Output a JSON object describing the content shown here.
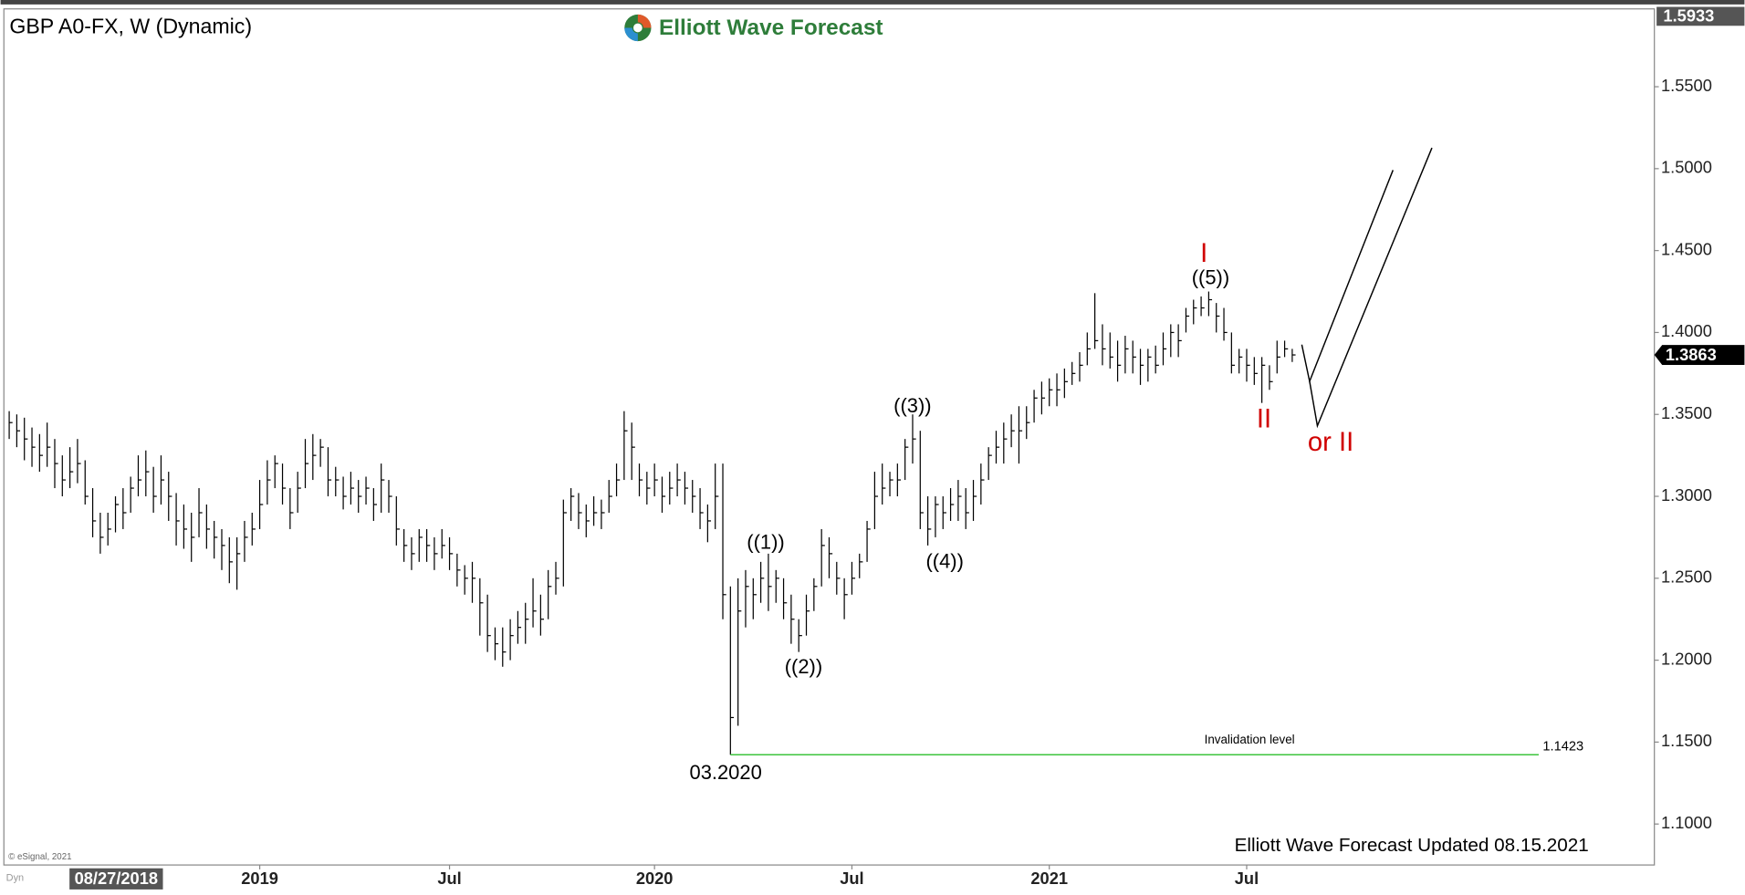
{
  "chart_data": {
    "type": "hlc",
    "title": "GBP A0-FX, W (Dynamic)",
    "brand": "Elliott Wave Forecast",
    "footer": "Elliott Wave Forecast Updated 08.15.2021",
    "copyright": "© eSignal, 2021",
    "mode_label": "Dyn",
    "date_marker": "08/27/2018",
    "color": "#000000",
    "xlim": [
      -0.7,
      216.7
    ],
    "xticks": [
      {
        "value": 33,
        "label": "2019"
      },
      {
        "value": 58,
        "label": "Jul"
      },
      {
        "value": 85,
        "label": "2020"
      },
      {
        "value": 111,
        "label": "Jul"
      },
      {
        "value": 137,
        "label": "2021"
      },
      {
        "value": 163,
        "label": "Jul"
      }
    ],
    "ylim": [
      1.075,
      1.5975
    ],
    "yticks": [
      {
        "value": 1.1,
        "label": "1.1000"
      },
      {
        "value": 1.15,
        "label": "1.1500"
      },
      {
        "value": 1.2,
        "label": "1.2000"
      },
      {
        "value": 1.25,
        "label": "1.2500"
      },
      {
        "value": 1.3,
        "label": "1.3000"
      },
      {
        "value": 1.35,
        "label": "1.3500"
      },
      {
        "value": 1.4,
        "label": "1.4000"
      },
      {
        "value": 1.45,
        "label": "1.4500"
      },
      {
        "value": 1.5,
        "label": "1.5000"
      },
      {
        "value": 1.55,
        "label": "1.5500"
      }
    ],
    "top_price": 1.5933,
    "last_price": 1.3863,
    "high": [
      1.352,
      1.35,
      1.348,
      1.342,
      1.338,
      1.345,
      1.335,
      1.325,
      1.33,
      1.335,
      1.322,
      1.305,
      1.29,
      1.29,
      1.3,
      1.305,
      1.312,
      1.325,
      1.328,
      1.318,
      1.325,
      1.315,
      1.302,
      1.295,
      1.29,
      1.305,
      1.295,
      1.285,
      1.28,
      1.275,
      1.275,
      1.285,
      1.29,
      1.31,
      1.322,
      1.325,
      1.32,
      1.305,
      1.315,
      1.335,
      1.338,
      1.335,
      1.33,
      1.318,
      1.312,
      1.315,
      1.31,
      1.312,
      1.305,
      1.32,
      1.31,
      1.3,
      1.28,
      1.275,
      1.28,
      1.28,
      1.275,
      1.28,
      1.275,
      1.265,
      1.258,
      1.26,
      1.25,
      1.24,
      1.22,
      1.22,
      1.225,
      1.23,
      1.235,
      1.25,
      1.24,
      1.255,
      1.26,
      1.298,
      1.305,
      1.302,
      1.295,
      1.3,
      1.298,
      1.31,
      1.32,
      1.352,
      1.345,
      1.32,
      1.315,
      1.32,
      1.312,
      1.315,
      1.32,
      1.315,
      1.31,
      1.305,
      1.295,
      1.32,
      1.32,
      1.245,
      1.25,
      1.255,
      1.25,
      1.26,
      1.265,
      1.255,
      1.25,
      1.24,
      1.225,
      1.24,
      1.25,
      1.28,
      1.275,
      1.26,
      1.25,
      1.26,
      1.265,
      1.285,
      1.315,
      1.32,
      1.315,
      1.32,
      1.335,
      1.35,
      1.34,
      1.3,
      1.3,
      1.3,
      1.305,
      1.31,
      1.305,
      1.31,
      1.32,
      1.33,
      1.34,
      1.345,
      1.35,
      1.355,
      1.355,
      1.365,
      1.37,
      1.372,
      1.375,
      1.378,
      1.382,
      1.388,
      1.4,
      1.424,
      1.405,
      1.4,
      1.395,
      1.398,
      1.395,
      1.39,
      1.39,
      1.392,
      1.4,
      1.405,
      1.405,
      1.415,
      1.42,
      1.422,
      1.425,
      1.418,
      1.415,
      1.4,
      1.39,
      1.39,
      1.385,
      1.385,
      1.38,
      1.395,
      1.395,
      1.39
    ],
    "low": [
      1.335,
      1.33,
      1.322,
      1.318,
      1.315,
      1.318,
      1.305,
      1.3,
      1.305,
      1.308,
      1.295,
      1.275,
      1.265,
      1.27,
      1.278,
      1.28,
      1.29,
      1.3,
      1.3,
      1.29,
      1.295,
      1.285,
      1.27,
      1.268,
      1.26,
      1.275,
      1.268,
      1.262,
      1.255,
      1.247,
      1.243,
      1.26,
      1.27,
      1.28,
      1.295,
      1.305,
      1.295,
      1.28,
      1.29,
      1.305,
      1.31,
      1.318,
      1.3,
      1.3,
      1.292,
      1.295,
      1.29,
      1.295,
      1.285,
      1.29,
      1.29,
      1.27,
      1.26,
      1.255,
      1.26,
      1.26,
      1.255,
      1.262,
      1.255,
      1.245,
      1.24,
      1.235,
      1.215,
      1.205,
      1.2,
      1.196,
      1.2,
      1.21,
      1.21,
      1.22,
      1.215,
      1.225,
      1.24,
      1.245,
      1.285,
      1.28,
      1.275,
      1.282,
      1.28,
      1.29,
      1.3,
      1.31,
      1.31,
      1.3,
      1.295,
      1.3,
      1.29,
      1.295,
      1.3,
      1.295,
      1.29,
      1.28,
      1.272,
      1.28,
      1.225,
      1.1423,
      1.16,
      1.22,
      1.225,
      1.235,
      1.23,
      1.235,
      1.225,
      1.21,
      1.205,
      1.215,
      1.23,
      1.245,
      1.25,
      1.24,
      1.225,
      1.24,
      1.25,
      1.26,
      1.28,
      1.295,
      1.3,
      1.3,
      1.31,
      1.32,
      1.28,
      1.27,
      1.275,
      1.28,
      1.285,
      1.285,
      1.28,
      1.285,
      1.295,
      1.31,
      1.32,
      1.32,
      1.33,
      1.32,
      1.335,
      1.345,
      1.35,
      1.355,
      1.355,
      1.36,
      1.368,
      1.37,
      1.38,
      1.39,
      1.38,
      1.378,
      1.37,
      1.375,
      1.375,
      1.368,
      1.37,
      1.375,
      1.38,
      1.385,
      1.385,
      1.4,
      1.405,
      1.41,
      1.41,
      1.4,
      1.395,
      1.375,
      1.375,
      1.37,
      1.368,
      1.357,
      1.365,
      1.375,
      1.385,
      1.382
    ],
    "close": [
      1.345,
      1.34,
      1.335,
      1.33,
      1.325,
      1.33,
      1.32,
      1.31,
      1.315,
      1.32,
      1.3,
      1.285,
      1.275,
      1.28,
      1.295,
      1.29,
      1.305,
      1.31,
      1.315,
      1.3,
      1.31,
      1.3,
      1.285,
      1.28,
      1.275,
      1.29,
      1.28,
      1.275,
      1.27,
      1.26,
      1.265,
      1.275,
      1.28,
      1.295,
      1.31,
      1.32,
      1.305,
      1.29,
      1.305,
      1.32,
      1.325,
      1.33,
      1.31,
      1.31,
      1.3,
      1.305,
      1.3,
      1.305,
      1.295,
      1.31,
      1.3,
      1.28,
      1.27,
      1.265,
      1.275,
      1.27,
      1.265,
      1.27,
      1.265,
      1.255,
      1.25,
      1.25,
      1.235,
      1.215,
      1.21,
      1.205,
      1.215,
      1.22,
      1.225,
      1.23,
      1.225,
      1.245,
      1.25,
      1.29,
      1.3,
      1.29,
      1.285,
      1.29,
      1.29,
      1.3,
      1.31,
      1.34,
      1.33,
      1.31,
      1.305,
      1.31,
      1.3,
      1.305,
      1.31,
      1.305,
      1.3,
      1.29,
      1.285,
      1.3,
      1.24,
      1.165,
      1.23,
      1.245,
      1.24,
      1.25,
      1.245,
      1.25,
      1.235,
      1.225,
      1.215,
      1.23,
      1.245,
      1.27,
      1.265,
      1.25,
      1.24,
      1.25,
      1.26,
      1.28,
      1.3,
      1.305,
      1.31,
      1.31,
      1.33,
      1.335,
      1.29,
      1.28,
      1.295,
      1.29,
      1.295,
      1.3,
      1.29,
      1.3,
      1.31,
      1.325,
      1.33,
      1.335,
      1.34,
      1.34,
      1.345,
      1.36,
      1.36,
      1.365,
      1.365,
      1.37,
      1.375,
      1.38,
      1.39,
      1.395,
      1.39,
      1.385,
      1.38,
      1.39,
      1.385,
      1.38,
      1.385,
      1.38,
      1.39,
      1.4,
      1.395,
      1.41,
      1.415,
      1.415,
      1.42,
      1.41,
      1.4,
      1.38,
      1.385,
      1.38,
      1.375,
      1.38,
      1.37,
      1.385,
      1.39,
      1.3863
    ],
    "annotations": [
      "((1))",
      "((2))",
      "((3))",
      "((4))",
      "((5))",
      "I",
      "II",
      "or II",
      "03.2020"
    ],
    "invalidation": {
      "label": "Invalidation level",
      "value": 1.1423
    }
  }
}
